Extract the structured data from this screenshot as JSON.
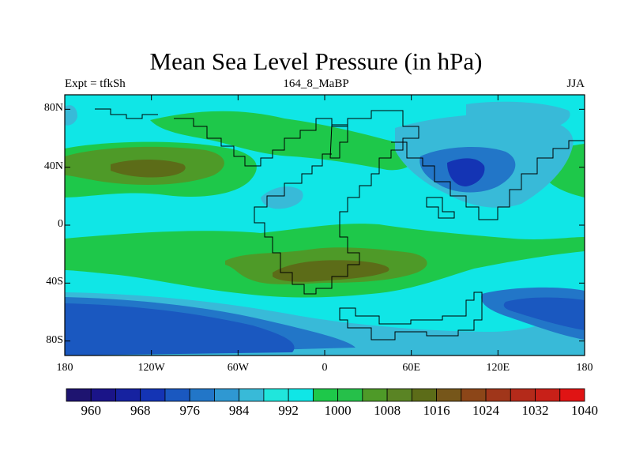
{
  "title": "Mean Sea Level Pressure (in hPa)",
  "subtitle_left": "Expt = tfkSh",
  "subtitle_center": "164_8_MaBP",
  "subtitle_right": "JJA",
  "lat_ticks": [
    {
      "label": "80N",
      "value": 80
    },
    {
      "label": "40N",
      "value": 40
    },
    {
      "label": "0",
      "value": 0
    },
    {
      "label": "40S",
      "value": -40
    },
    {
      "label": "80S",
      "value": -80
    }
  ],
  "lon_ticks": [
    {
      "label": "180",
      "value": -180
    },
    {
      "label": "120W",
      "value": -120
    },
    {
      "label": "60W",
      "value": -60
    },
    {
      "label": "0",
      "value": 0
    },
    {
      "label": "60E",
      "value": 60
    },
    {
      "label": "120E",
      "value": 120
    },
    {
      "label": "180",
      "value": 180
    }
  ],
  "colorbar": {
    "labels": [
      "960",
      "968",
      "976",
      "984",
      "992",
      "1000",
      "1008",
      "1016",
      "1024",
      "1032",
      "1040"
    ],
    "colors": [
      "#1e1470",
      "#1a1488",
      "#1622a0",
      "#1434b4",
      "#1a58c0",
      "#2276c8",
      "#2f98d2",
      "#38bad8",
      "#20e6dc",
      "#10e6e6",
      "#1ec84a",
      "#26c04a",
      "#4e9a28",
      "#5a8424",
      "#5c6c18",
      "#76561a",
      "#8c4618",
      "#a0361a",
      "#b42a1a",
      "#c82018",
      "#e01414"
    ]
  }
}
